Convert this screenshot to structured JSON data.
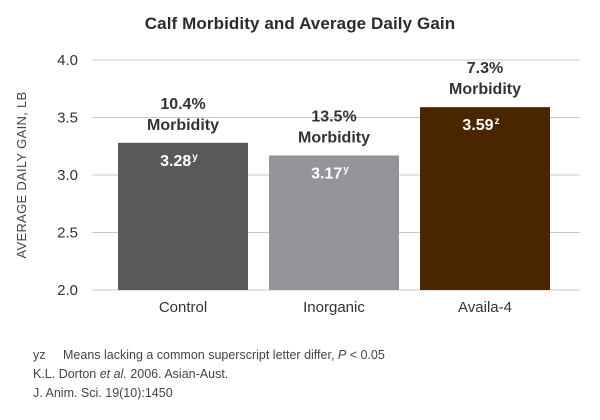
{
  "chart_data": {
    "type": "bar",
    "title": "Calf Morbidity and Average Daily Gain",
    "ylabel": "AVERAGE DAILY GAIN, LB",
    "xlabel": "",
    "ylim": [
      2.0,
      4.0
    ],
    "yticks": [
      "2.0",
      "2.5",
      "3.0",
      "3.5",
      "4.0"
    ],
    "grid": true,
    "categories": [
      "Control",
      "Inorganic",
      "Availa-4"
    ],
    "values": [
      3.28,
      3.17,
      3.59
    ],
    "value_labels": [
      "3.28",
      "3.17",
      "3.59"
    ],
    "value_superscripts": [
      "y",
      "y",
      "z"
    ],
    "morbidity_percent": [
      "10.4%",
      "13.5%",
      "7.3%"
    ],
    "morbidity_label": "Morbidity",
    "colors": [
      "#58595b",
      "#939598",
      "#4a2600"
    ],
    "grid_color": "#c8c8c8"
  },
  "footnotes": {
    "sig_key": "yz",
    "sig_text_before": "Means lacking a common superscript letter differ, ",
    "sig_p": "P",
    "sig_text_after": " < 0.05",
    "ref_before": "K.L. Dorton ",
    "ref_etal": "et al.",
    "ref_after": " 2006. Asian-Aust.",
    "ref_line2": "J. Anim. Sci. 19(10):1450"
  }
}
